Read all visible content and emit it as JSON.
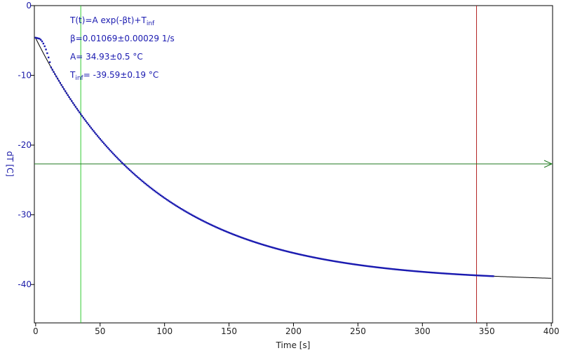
{
  "chart_data": {
    "type": "scatter",
    "title": "",
    "xlabel": "Time [s]",
    "ylabel": "dT [C]",
    "xlim": [
      -1,
      401
    ],
    "ylim": [
      -45.5,
      0
    ],
    "x_ticks": [
      0,
      50,
      100,
      150,
      200,
      250,
      300,
      350,
      400
    ],
    "y_ticks": [
      0,
      -10,
      -20,
      -30,
      -40
    ],
    "grid": false,
    "annotation": {
      "formula_main": "T(t)=A exp(-βt)+T",
      "formula_sub": "inf",
      "beta": "β=0.01069±0.00029 1/s",
      "amplitude": "A= 34.93±0.5 °C",
      "tinf_main": "T",
      "tinf_sub": "inf",
      "tinf_rest": "= -39.59±0.19 °C"
    },
    "fit": {
      "A": 34.93,
      "beta": 0.01069,
      "T_inf": -39.59,
      "x_range": [
        0,
        400
      ]
    },
    "measured": {
      "x_range": [
        0,
        355
      ],
      "initial_plateau": -4.6
    },
    "cursors": {
      "left_x": 35,
      "right_x": 342,
      "level_y": -22.7
    },
    "colors": {
      "data": "#1a1ab0",
      "fit": "#000000",
      "left_cursor": "#33cc33",
      "right_cursor": "#b22222",
      "level_line": "#1f7a1f",
      "frame": "#000000"
    }
  }
}
